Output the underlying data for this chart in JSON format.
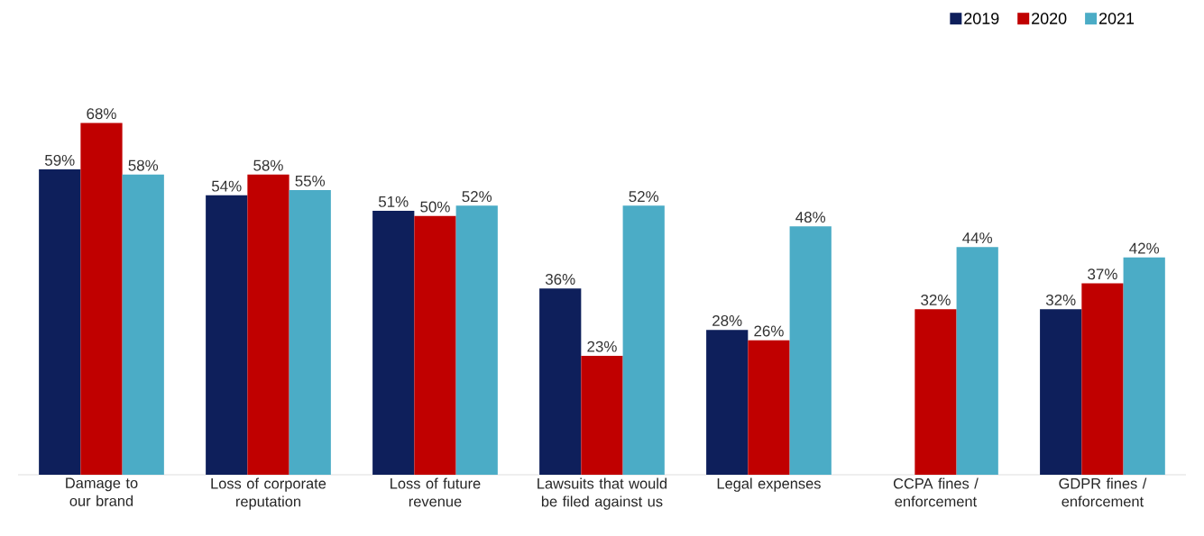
{
  "chart_data": {
    "type": "bar",
    "categories": [
      "Damage to our brand",
      "Loss of corporate reputation",
      "Loss of future revenue",
      "Lawsuits that would be filed against us",
      "Legal expenses",
      "CCPA fines / enforcement",
      "GDPR fines / enforcement"
    ],
    "series": [
      {
        "name": "2019",
        "color": "#0e1f5b",
        "values": [
          59,
          54,
          51,
          36,
          28,
          null,
          32
        ],
        "value_labels": [
          "59%",
          "54%",
          "51%",
          "36%",
          "28%",
          null,
          "32%"
        ]
      },
      {
        "name": "2020",
        "color": "#c00000",
        "values": [
          68,
          58,
          50,
          23,
          26,
          32,
          37
        ],
        "value_labels": [
          "68%",
          "58%",
          "50%",
          "23%",
          "26%",
          "32%",
          "37%"
        ]
      },
      {
        "name": "2021",
        "color": "#4bacc6",
        "values": [
          58,
          55,
          52,
          52,
          48,
          44,
          42
        ],
        "value_labels": [
          "58%",
          "55%",
          "52%",
          "52%",
          "48%",
          "44%",
          "42%"
        ]
      }
    ],
    "ylim": [
      0,
      90
    ],
    "legend": "top right"
  }
}
